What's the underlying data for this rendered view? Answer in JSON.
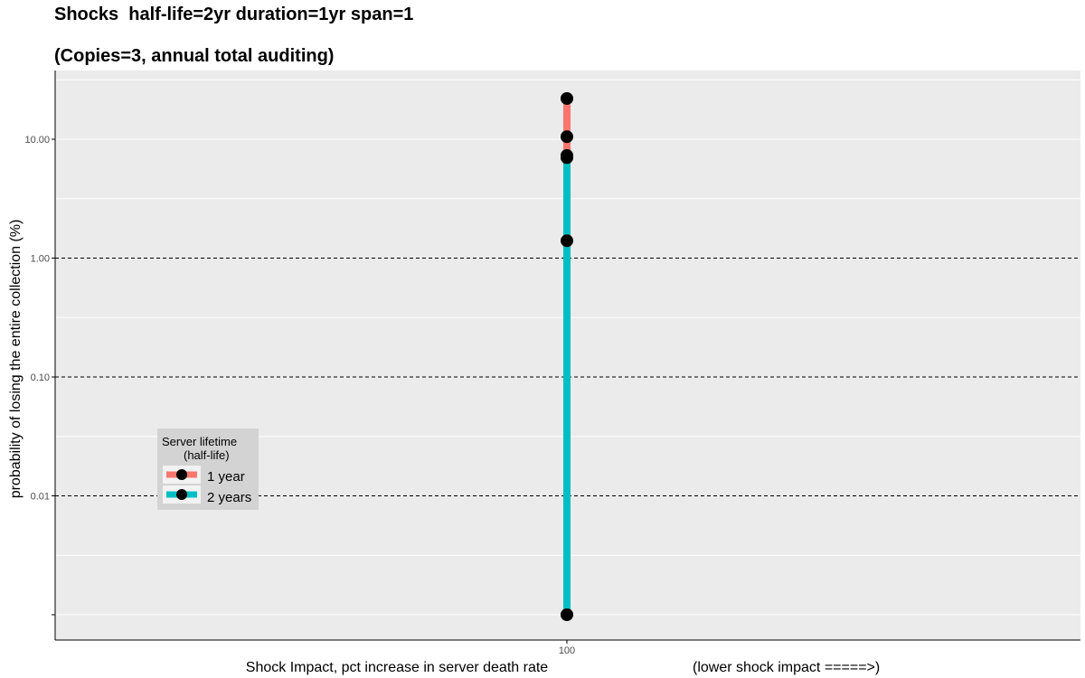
{
  "titles": {
    "line1": "Shocks  half-life=2yr duration=1yr span=1",
    "line2": "(Copies=3, annual total auditing)"
  },
  "chart_data": {
    "type": "line",
    "y_scale": "log10",
    "ylim": [
      0.0003,
      25
    ],
    "x_categories": [
      "100"
    ],
    "xlabel": "Shock Impact, pct increase in server death rate",
    "xlabel_note": "(lower shock impact =====>)",
    "ylabel": "probability of losing the entire collection (%)",
    "y_tick_labels": [
      "10.00",
      "1.00",
      "0.10",
      "0.01"
    ],
    "y_tick_values": [
      10,
      1,
      0.1,
      0.01
    ],
    "y_minor_tick_values": [
      0.001
    ],
    "grid": "on",
    "legend": {
      "title_line1": "Server lifetime",
      "title_line2": "(half-life)",
      "placement": "left"
    },
    "series": [
      {
        "name": "1 year",
        "color": "#F8766D",
        "x": [
          "100",
          "100",
          "100"
        ],
        "y": [
          22,
          10.5,
          7.0
        ]
      },
      {
        "name": "2 years",
        "color": "#00BFC4",
        "x": [
          "100",
          "100",
          "100"
        ],
        "y": [
          7.3,
          1.4,
          0.001
        ]
      }
    ]
  }
}
